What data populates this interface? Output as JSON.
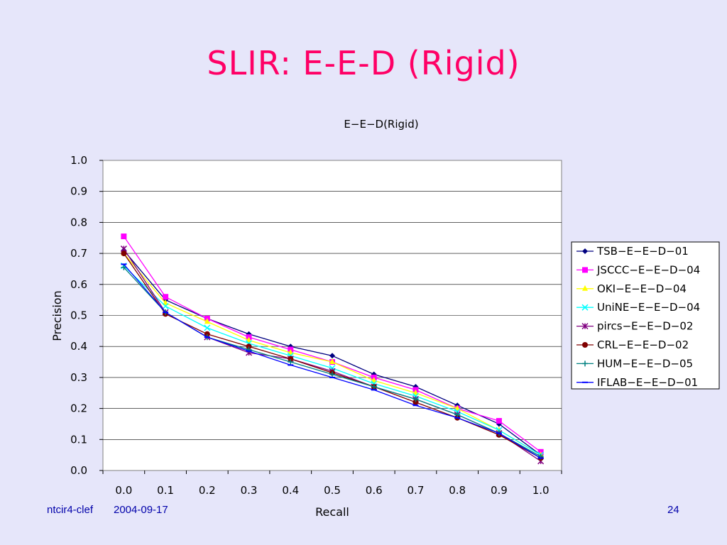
{
  "slide": {
    "title": "SLIR: E-E-D (Rigid)",
    "footer_left": "ntcir4-clef",
    "footer_date": "2004-09-17",
    "page_number": "24"
  },
  "chart_data": {
    "type": "line",
    "title": "E−E−D(Rigid)",
    "xlabel": "Recall",
    "ylabel": "Precision",
    "categories": [
      "0.0",
      "0.1",
      "0.2",
      "0.3",
      "0.4",
      "0.5",
      "0.6",
      "0.7",
      "0.8",
      "0.9",
      "1.0"
    ],
    "y_ticks": [
      "0.0",
      "0.1",
      "0.2",
      "0.3",
      "0.4",
      "0.5",
      "0.6",
      "0.7",
      "0.8",
      "0.9",
      "1.0"
    ],
    "ylim": [
      0,
      1
    ],
    "grid": true,
    "legend_position": "right",
    "series": [
      {
        "name": "TSB−E−E−D−01",
        "color": "#000080",
        "marker": "diamond",
        "values": [
          0.71,
          0.55,
          0.49,
          0.44,
          0.4,
          0.37,
          0.31,
          0.27,
          0.21,
          0.15,
          0.05
        ]
      },
      {
        "name": "JSCCC−E−E−D−04",
        "color": "#ff00ff",
        "marker": "square",
        "values": [
          0.755,
          0.56,
          0.49,
          0.43,
          0.39,
          0.35,
          0.3,
          0.26,
          0.2,
          0.16,
          0.06
        ]
      },
      {
        "name": "OKI−E−E−D−04",
        "color": "#ffff00",
        "marker": "triangle",
        "values": [
          0.7,
          0.54,
          0.48,
          0.42,
          0.38,
          0.35,
          0.29,
          0.25,
          0.2,
          0.13,
          0.05
        ]
      },
      {
        "name": "UniNE−E−E−D−04",
        "color": "#00ffff",
        "marker": "x",
        "values": [
          0.66,
          0.53,
          0.46,
          0.41,
          0.37,
          0.33,
          0.28,
          0.24,
          0.19,
          0.13,
          0.05
        ]
      },
      {
        "name": "pircs−E−E−D−02",
        "color": "#800080",
        "marker": "star",
        "values": [
          0.715,
          0.51,
          0.43,
          0.38,
          0.36,
          0.32,
          0.27,
          0.23,
          0.18,
          0.12,
          0.03
        ]
      },
      {
        "name": "CRL−E−E−D−02",
        "color": "#800000",
        "marker": "circle",
        "values": [
          0.7,
          0.505,
          0.44,
          0.4,
          0.36,
          0.315,
          0.27,
          0.22,
          0.17,
          0.115,
          0.04
        ]
      },
      {
        "name": "HUM−E−E−D−05",
        "color": "#008080",
        "marker": "plus",
        "values": [
          0.655,
          0.51,
          0.43,
          0.39,
          0.35,
          0.31,
          0.27,
          0.23,
          0.18,
          0.12,
          0.045
        ]
      },
      {
        "name": "IFLAB−E−E−D−01",
        "color": "#0000ff",
        "marker": "dash",
        "values": [
          0.665,
          0.51,
          0.43,
          0.385,
          0.34,
          0.3,
          0.26,
          0.21,
          0.17,
          0.12,
          0.04
        ]
      }
    ]
  }
}
